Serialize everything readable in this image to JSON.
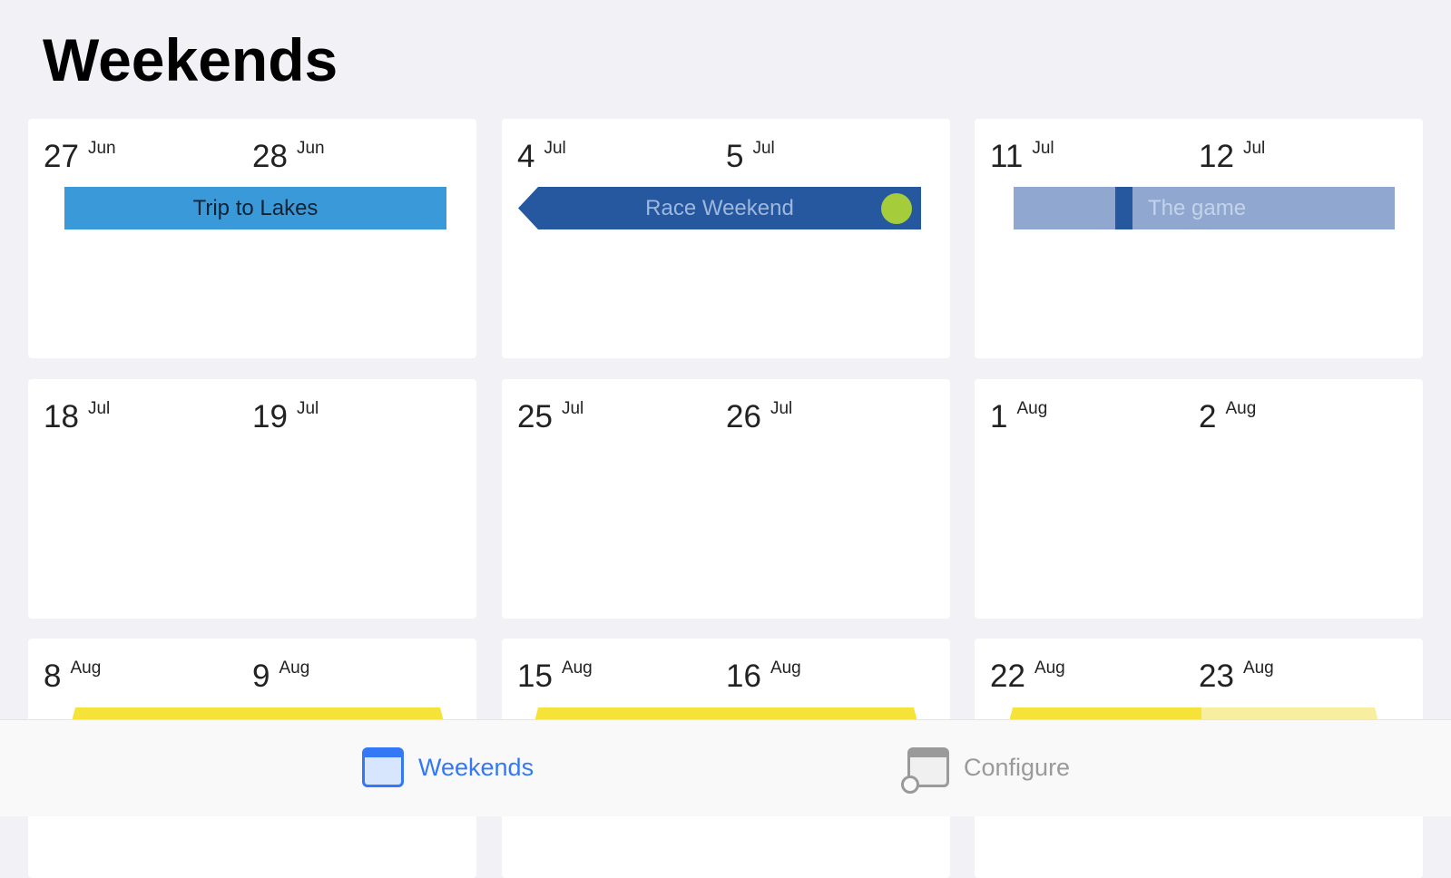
{
  "title": "Weekends",
  "weeks": [
    {
      "d1": "27",
      "m1": "Jun",
      "d2": "28",
      "m2": "Jun",
      "event": {
        "label": "Trip to Lakes",
        "color": "#3a9ad9"
      }
    },
    {
      "d1": "4",
      "m1": "Jul",
      "d2": "5",
      "m2": "Jul",
      "event": {
        "label": "Race Weekend",
        "color": "#25589f",
        "dot_color": "#a5cc3a"
      }
    },
    {
      "d1": "11",
      "m1": "Jul",
      "d2": "12",
      "m2": "Jul",
      "event": {
        "label": "The game",
        "color": "#90a8d0"
      }
    },
    {
      "d1": "18",
      "m1": "Jul",
      "d2": "19",
      "m2": "Jul"
    },
    {
      "d1": "25",
      "m1": "Jul",
      "d2": "26",
      "m2": "Jul"
    },
    {
      "d1": "1",
      "m1": "Aug",
      "d2": "2",
      "m2": "Aug"
    },
    {
      "d1": "8",
      "m1": "Aug",
      "d2": "9",
      "m2": "Aug",
      "event": {
        "color": "#f5e33a"
      }
    },
    {
      "d1": "15",
      "m1": "Aug",
      "d2": "16",
      "m2": "Aug",
      "event": {
        "color": "#f5e33a"
      }
    },
    {
      "d1": "22",
      "m1": "Aug",
      "d2": "23",
      "m2": "Aug",
      "event": {
        "color": "#f5e33a"
      }
    }
  ],
  "tabs": [
    {
      "label": "Weekends",
      "icon": "calendar-icon",
      "active": true
    },
    {
      "label": "Configure",
      "icon": "calendar-add-icon",
      "active": false
    }
  ],
  "colors": {
    "accent": "#3478f6",
    "inactive": "#9a9a9a"
  }
}
